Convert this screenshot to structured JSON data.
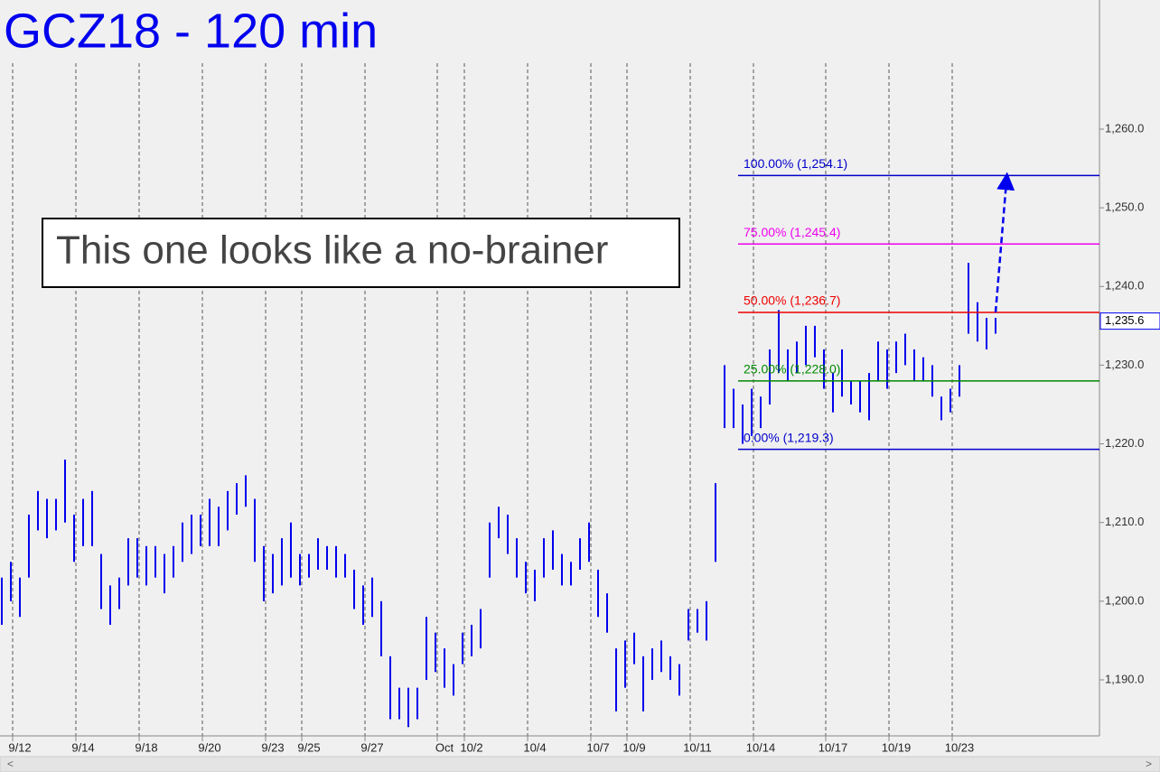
{
  "chart_data": {
    "type": "ohlc",
    "title": "GCZ18 - 120 min",
    "annotation": "This one looks like a no-brainer",
    "color": "#0000ee",
    "categories": [
      null,
      null,
      "9/12",
      null,
      null,
      null,
      null,
      null,
      null,
      "9/14",
      null,
      null,
      null,
      null,
      null,
      null,
      "9/18",
      null,
      null,
      null,
      null,
      null,
      null,
      "9/20",
      null,
      null,
      null,
      null,
      null,
      null,
      "9/23",
      null,
      null,
      null,
      "9/25",
      null,
      null,
      null,
      null,
      null,
      null,
      "9/27",
      null,
      null,
      null,
      null,
      null,
      null,
      null,
      "Oct",
      null,
      null,
      "10/2",
      null,
      null,
      null,
      null,
      null,
      null,
      "10/4",
      null,
      null,
      null,
      null,
      null,
      null,
      "10/7",
      null,
      null,
      null,
      "10/9",
      null,
      null,
      null,
      null,
      null,
      null,
      "10/11",
      null,
      null,
      null,
      null,
      null,
      null,
      "10/14",
      null,
      null,
      null,
      null,
      null,
      null,
      null,
      "10/17",
      null,
      null,
      null,
      null,
      null,
      null,
      "10/19",
      null,
      null,
      null,
      null,
      null,
      null,
      "10/23",
      null,
      null,
      null,
      null
    ],
    "high": [
      1203,
      1205,
      1203,
      1211,
      1214,
      1213,
      1213,
      1218,
      1211,
      1213,
      1214,
      1206,
      1202,
      1203,
      1208,
      1208,
      1207,
      1207,
      1206,
      1207,
      1210,
      1211,
      1211,
      1213,
      1212,
      1214,
      1215,
      1216,
      1213,
      1207,
      1206,
      1208,
      1210,
      1206,
      1206,
      1208,
      1207,
      1207,
      1206,
      1204,
      1202,
      1203,
      1200,
      1193,
      1189,
      1189,
      1189,
      1198,
      1196,
      1194,
      1192,
      1196,
      1197,
      1199,
      1210,
      1212,
      1211,
      1208,
      1205,
      1204,
      1208,
      1209,
      1206,
      1205,
      1208,
      1210,
      1204,
      1201,
      1194,
      1195,
      1196,
      1193,
      1194,
      1195,
      1193,
      1192,
      1199,
      1199,
      1200,
      1215,
      1230,
      1227,
      1225,
      1227,
      1226,
      1232,
      1237,
      1232,
      1233,
      1235,
      1235,
      1232,
      1229,
      1232,
      1228,
      1228,
      1229,
      1233,
      1232,
      1233,
      1234,
      1232,
      1231,
      1230,
      1226,
      1227,
      1230,
      1243,
      1238,
      1236,
      1236
    ],
    "low": [
      1197,
      1200,
      1198,
      1203,
      1209,
      1208,
      1209,
      1210,
      1205,
      1207,
      1207,
      1199,
      1197,
      1199,
      1202,
      1203,
      1202,
      1203,
      1201,
      1203,
      1205,
      1206,
      1207,
      1207,
      1207,
      1209,
      1211,
      1212,
      1205,
      1200,
      1201,
      1202,
      1203,
      1202,
      1203,
      1204,
      1204,
      1203,
      1203,
      1199,
      1197,
      1198,
      1193,
      1185,
      1185,
      1184,
      1185,
      1190,
      1191,
      1189,
      1188,
      1192,
      1193,
      1194,
      1203,
      1208,
      1206,
      1203,
      1201,
      1200,
      1203,
      1204,
      1202,
      1202,
      1204,
      1205,
      1198,
      1196,
      1186,
      1189,
      1192,
      1186,
      1190,
      1191,
      1190,
      1188,
      1195,
      1196,
      1195,
      1205,
      1222,
      1222,
      1220,
      1221,
      1222,
      1225,
      1229,
      1228,
      1229,
      1230,
      1231,
      1227,
      1224,
      1226,
      1225,
      1224,
      1223,
      1228,
      1227,
      1229,
      1230,
      1228,
      1228,
      1226,
      1223,
      1224,
      1226,
      1234,
      1233,
      1232,
      1234
    ],
    "levels": [
      {
        "label": "100.00% (1,254.1)",
        "value": 1254.1,
        "color": "#0000cc"
      },
      {
        "label": "75.00% (1,245.4)",
        "value": 1245.4,
        "color": "#ee00ee"
      },
      {
        "label": "50.00% (1,236.7)",
        "value": 1236.7,
        "color": "#ee0000"
      },
      {
        "label": "25.00% (1,228.0)",
        "value": 1228.0,
        "color": "#008800"
      },
      {
        "label": "0.00% (1,219.3)",
        "value": 1219.3,
        "color": "#0000cc"
      }
    ],
    "last_price": {
      "value": 1235.6,
      "label": "1,235.6"
    },
    "ylim": [
      1182.88,
      1276.41
    ],
    "yticks": [
      {
        "value": 1190,
        "label": "1,190.0"
      },
      {
        "value": 1200,
        "label": "1,200.0"
      },
      {
        "value": 1210,
        "label": "1,210.0"
      },
      {
        "value": 1220,
        "label": "1,220.0"
      },
      {
        "value": 1230,
        "label": "1,230.0"
      },
      {
        "value": 1240,
        "label": "1,240.0"
      },
      {
        "value": 1250,
        "label": "1,250.0"
      },
      {
        "value": 1260,
        "label": "1,260.0"
      }
    ],
    "grid": true
  }
}
